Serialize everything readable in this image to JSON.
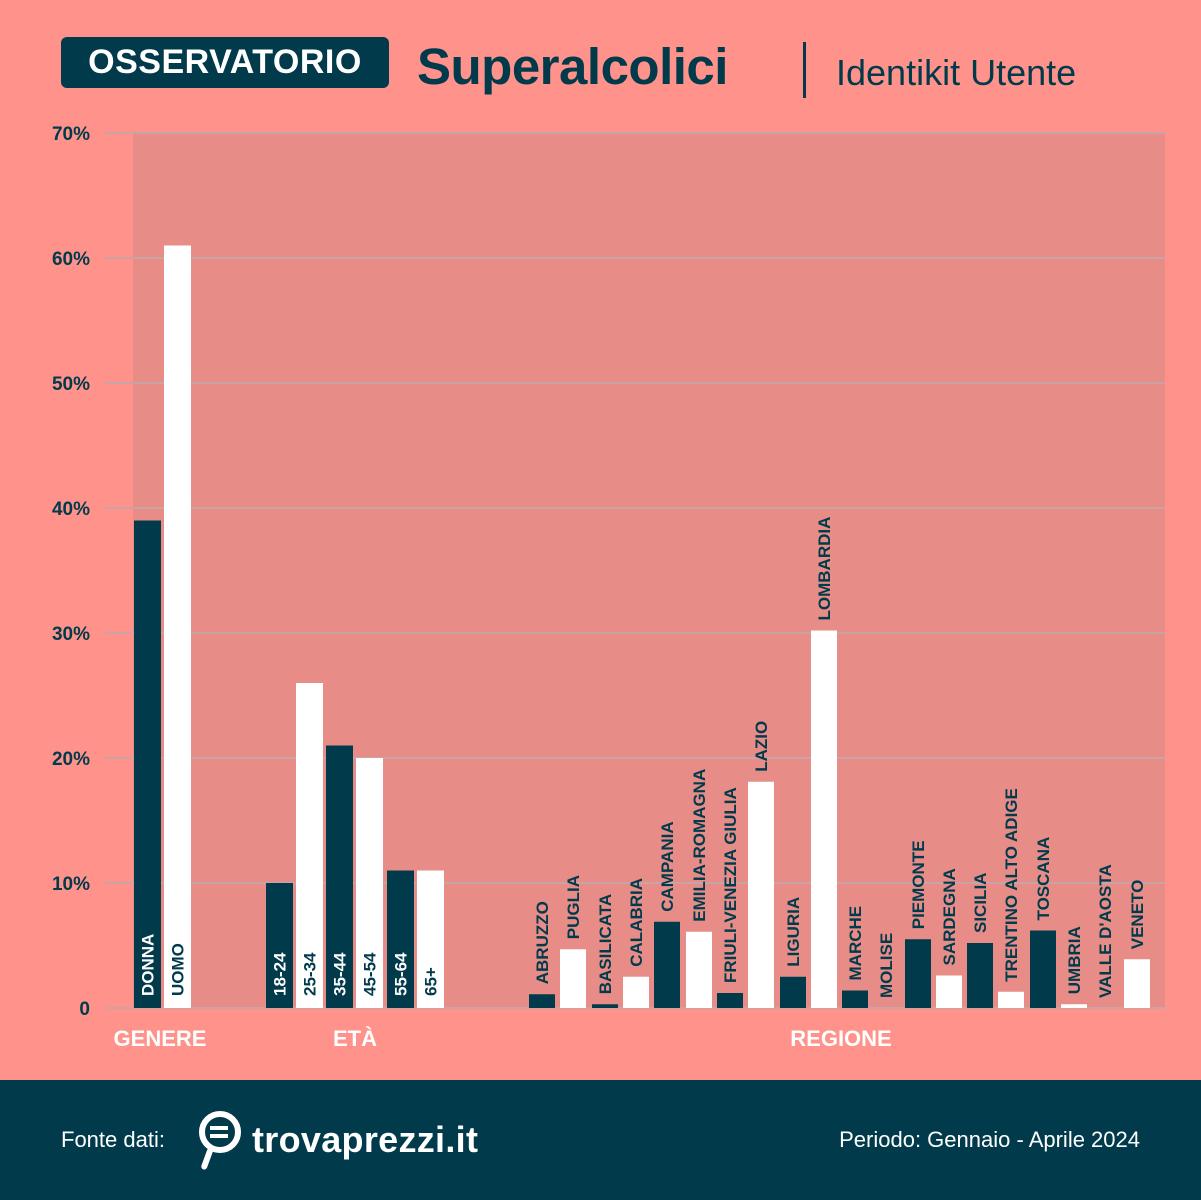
{
  "header": {
    "badge": "OSSERVATORIO",
    "title": "Superalcolici",
    "separator": "|",
    "subtitle": "Identikit Utente"
  },
  "footer": {
    "source_label": "Fonte dati:",
    "brand": "trovaprezzi.it",
    "brand_icon": "trovaprezzi-logo-icon",
    "period": "Periodo: Gennaio - Aprile 2024"
  },
  "colors": {
    "background": "#ff928a",
    "dark": "#003a4b",
    "light": "#ffffff",
    "plot_shade": "#e48c86",
    "gridline": "#c9a3a6"
  },
  "chart_data": {
    "type": "bar",
    "y_axis": {
      "min": 0,
      "max": 70,
      "ticks": [
        0,
        10,
        20,
        30,
        40,
        50,
        60,
        70
      ],
      "tick_labels": [
        "0",
        "10%",
        "20%",
        "30%",
        "40%",
        "50%",
        "60%",
        "70%"
      ]
    },
    "grid": true,
    "groups": [
      {
        "name": "GENERE",
        "bars": [
          {
            "label": "DONNA",
            "value": 39,
            "color": "dark"
          },
          {
            "label": "UOMO",
            "value": 61,
            "color": "light"
          }
        ]
      },
      {
        "name": "ETÀ",
        "bars": [
          {
            "label": "18-24",
            "value": 10,
            "color": "dark"
          },
          {
            "label": "25-34",
            "value": 26,
            "color": "light"
          },
          {
            "label": "35-44",
            "value": 21,
            "color": "dark"
          },
          {
            "label": "45-54",
            "value": 20,
            "color": "light"
          },
          {
            "label": "55-64",
            "value": 11,
            "color": "dark"
          },
          {
            "label": "65+",
            "value": 11,
            "color": "light"
          }
        ]
      },
      {
        "name": "REGIONE",
        "bars": [
          {
            "label": "ABRUZZO",
            "value": 1.1,
            "color": "dark"
          },
          {
            "label": "PUGLIA",
            "value": 4.7,
            "color": "light"
          },
          {
            "label": "BASILICATA",
            "value": 0.3,
            "color": "dark"
          },
          {
            "label": "CALABRIA",
            "value": 2.5,
            "color": "light"
          },
          {
            "label": "CAMPANIA",
            "value": 6.9,
            "color": "dark"
          },
          {
            "label": "EMILIA-ROMAGNA",
            "value": 6.1,
            "color": "light"
          },
          {
            "label": "FRIULI-VENEZIA GIULIA",
            "value": 1.2,
            "color": "dark"
          },
          {
            "label": "LAZIO",
            "value": 18.1,
            "color": "light"
          },
          {
            "label": "LIGURIA",
            "value": 2.5,
            "color": "dark"
          },
          {
            "label": "LOMBARDIA",
            "value": 30.2,
            "color": "light"
          },
          {
            "label": "MARCHE",
            "value": 1.4,
            "color": "dark"
          },
          {
            "label": "MOLISE",
            "value": 0,
            "color": "light"
          },
          {
            "label": "PIEMONTE",
            "value": 5.5,
            "color": "dark"
          },
          {
            "label": "SARDEGNA",
            "value": 2.6,
            "color": "light"
          },
          {
            "label": "SICILIA",
            "value": 5.2,
            "color": "dark"
          },
          {
            "label": "TRENTINO ALTO ADIGE",
            "value": 1.3,
            "color": "light"
          },
          {
            "label": "TOSCANA",
            "value": 6.2,
            "color": "dark"
          },
          {
            "label": "UMBRIA",
            "value": 0.3,
            "color": "light"
          },
          {
            "label": "VALLE D'AOSTA",
            "value": 0,
            "color": "dark"
          },
          {
            "label": "VENETO",
            "value": 3.9,
            "color": "light"
          }
        ]
      }
    ]
  }
}
